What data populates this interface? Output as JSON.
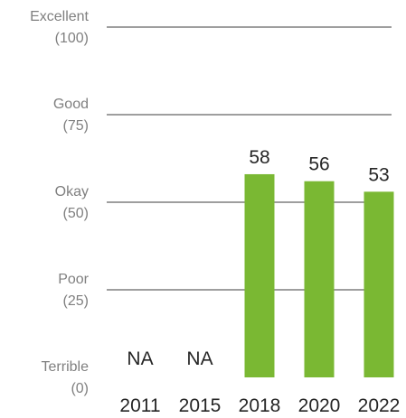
{
  "chart_data": {
    "type": "bar",
    "title": "",
    "xlabel": "",
    "ylabel": "",
    "categories": [
      "2011",
      "2015",
      "2018",
      "2020",
      "2022"
    ],
    "values": [
      null,
      null,
      58,
      56,
      53
    ],
    "data_labels": [
      "NA",
      "NA",
      "58",
      "56",
      "53"
    ],
    "ylim": [
      0,
      100
    ],
    "yticks": [
      {
        "value": 100,
        "line1": "Excellent",
        "line2": "(100)"
      },
      {
        "value": 75,
        "line1": "Good",
        "line2": "(75)"
      },
      {
        "value": 50,
        "line1": "Okay",
        "line2": "(50)"
      },
      {
        "value": 25,
        "line1": "Poor",
        "line2": "(25)"
      },
      {
        "value": 0,
        "line1": "Terrible",
        "line2": "(0)"
      }
    ],
    "grid": true,
    "legend": "none",
    "colors": {
      "bar": "#7ab833",
      "grid": "#7f7f7f",
      "axis_label": "#7f7f7f",
      "text": "#262626"
    }
  }
}
